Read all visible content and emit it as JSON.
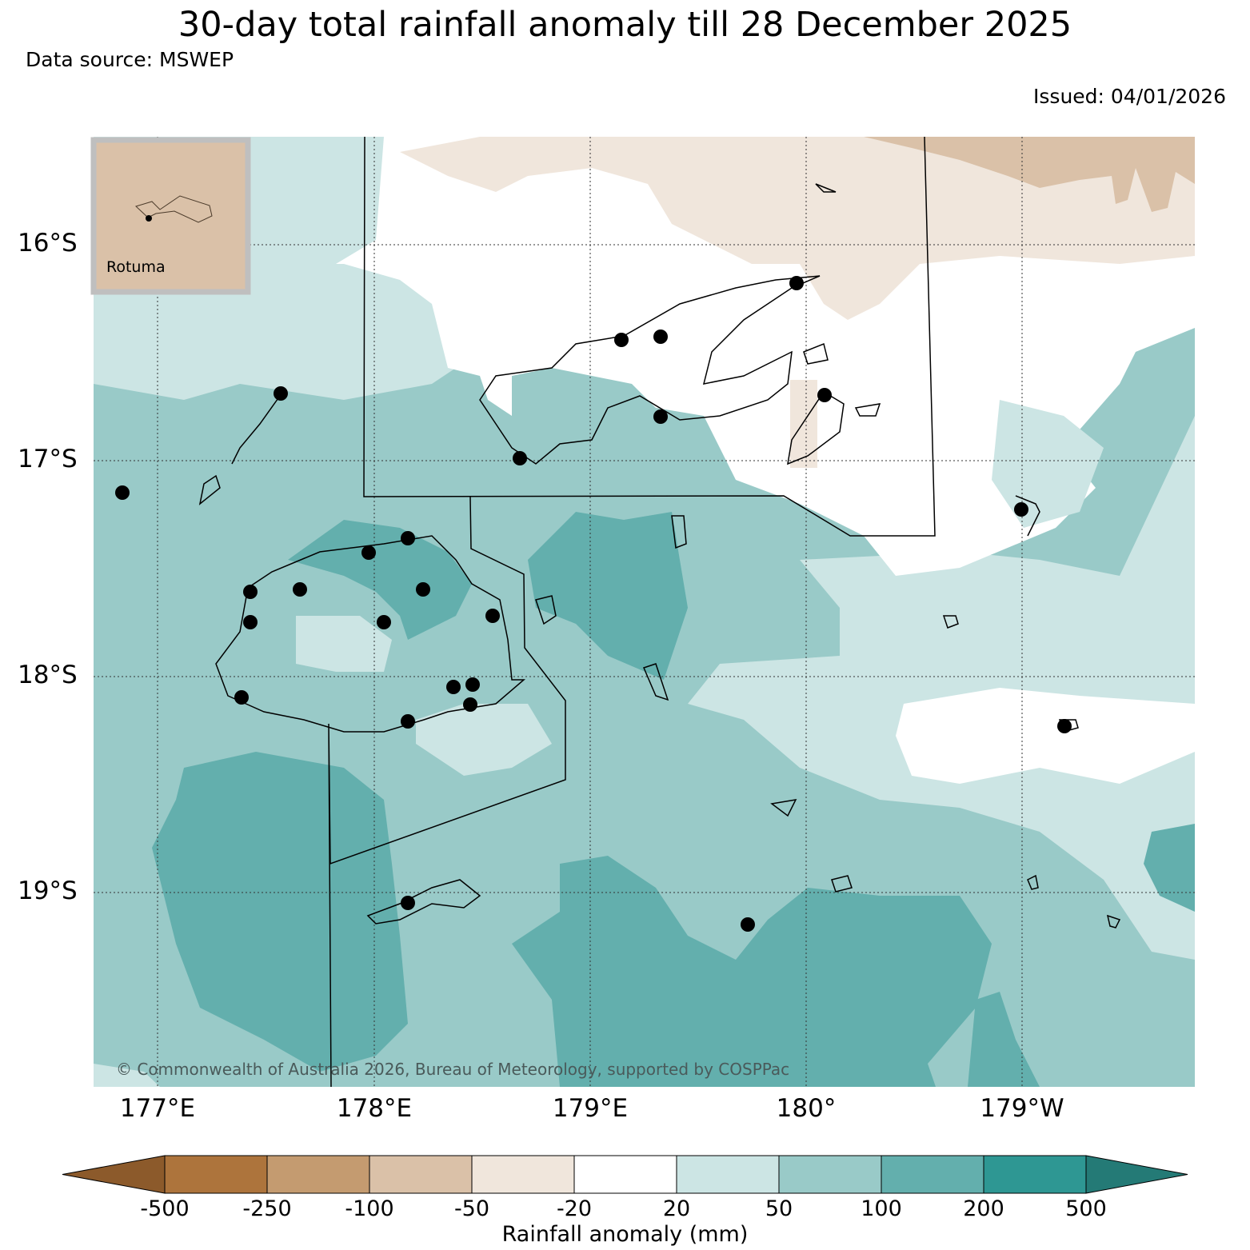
{
  "header": {
    "title": "30-day total rainfall anomaly till 28 December 2025",
    "source": "Data source: MSWEP",
    "issued": "Issued: 04/01/2026"
  },
  "map": {
    "lat_labels": [
      "16°S",
      "17°S",
      "18°S",
      "19°S"
    ],
    "lon_labels": [
      "177°E",
      "178°E",
      "179°E",
      "180°",
      "179°W"
    ],
    "inset_label": "Rotuma",
    "copyright": "© Commonwealth of Australia 2026, Bureau of Meteorology, supported by COSPPac",
    "gridlines": true
  },
  "legend": {
    "title": "Rainfall anomaly (mm)",
    "ticks": [
      "-500",
      "-250",
      "-100",
      "-50",
      "-20",
      "20",
      "50",
      "100",
      "200",
      "500"
    ],
    "bins": [
      {
        "range": "< -500",
        "color": "#8c5a2b"
      },
      {
        "range": "-500 to -250",
        "color": "#ad743c"
      },
      {
        "range": "-250 to -100",
        "color": "#c49b70"
      },
      {
        "range": "-100 to -50",
        "color": "#dac1a8"
      },
      {
        "range": "-50 to -20",
        "color": "#f0e6dc"
      },
      {
        "range": "-20 to 20",
        "color": "#ffffff"
      },
      {
        "range": "20 to 50",
        "color": "#cce5e4"
      },
      {
        "range": "50 to 100",
        "color": "#99cac8"
      },
      {
        "range": "100 to 200",
        "color": "#63afad"
      },
      {
        "range": "200 to 500",
        "color": "#2e9793"
      },
      {
        "range": "> 500",
        "color": "#247a76"
      }
    ]
  }
}
